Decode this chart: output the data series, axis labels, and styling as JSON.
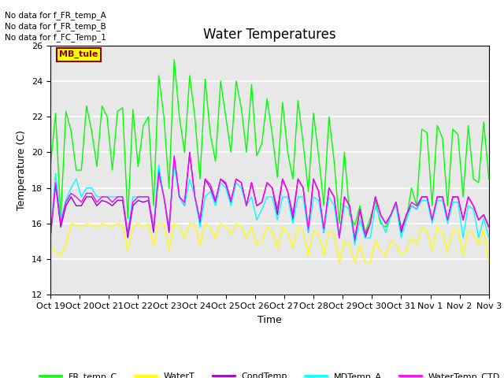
{
  "title": "Water Temperatures",
  "xlabel": "Time",
  "ylabel": "Temperature (C)",
  "ylim": [
    12,
    26
  ],
  "yticks": [
    12,
    14,
    16,
    18,
    20,
    22,
    24,
    26
  ],
  "background_color": "#ffffff",
  "plot_bg_color": "#e8e8e8",
  "no_data_texts": [
    "No data for f_FR_temp_A",
    "No data for f_FR_temp_B",
    "No data for f_FC_Temp_1"
  ],
  "mb_tule_label": "MB_tule",
  "legend_entries": [
    "FR_temp_C",
    "WaterT",
    "CondTemp",
    "MDTemp_A",
    "WaterTemp_CTD"
  ],
  "legend_colors": [
    "#00ff00",
    "#ffff00",
    "#9900cc",
    "#00ffff",
    "#ff00ff"
  ],
  "xtick_labels": [
    "Oct 19",
    "Oct 20",
    "Oct 21",
    "Oct 22",
    "Oct 23",
    "Oct 24",
    "Oct 25",
    "Oct 26",
    "Oct 27",
    "Oct 28",
    "Oct 29",
    "Oct 30",
    "Oct 31",
    "Nov 1",
    "Nov 2",
    "Nov 3"
  ],
  "FR_temp_C": [
    19.2,
    22.2,
    16.3,
    22.3,
    21.2,
    19.0,
    19.0,
    22.6,
    21.2,
    19.2,
    22.6,
    22.0,
    19.0,
    22.3,
    22.5,
    16.3,
    22.4,
    19.2,
    21.5,
    22.0,
    17.0,
    24.3,
    22.0,
    18.0,
    25.2,
    22.0,
    20.0,
    24.3,
    22.0,
    18.5,
    24.1,
    21.0,
    19.5,
    24.0,
    22.0,
    20.0,
    24.0,
    22.5,
    20.0,
    23.8,
    19.8,
    20.5,
    23.0,
    21.0,
    18.6,
    22.8,
    20.0,
    18.5,
    22.9,
    20.5,
    17.8,
    22.2,
    19.8,
    17.0,
    22.0,
    19.5,
    16.0,
    20.0,
    16.5,
    15.9,
    17.0,
    15.5,
    16.3,
    17.3,
    16.0,
    15.8,
    16.4,
    17.2,
    15.8,
    16.2,
    18.0,
    17.0,
    21.3,
    21.1,
    17.0,
    21.5,
    20.8,
    17.0,
    21.3,
    21.0,
    17.5,
    21.5,
    18.5,
    18.3,
    21.7,
    18.5
  ],
  "WaterT": [
    14.8,
    14.4,
    14.2,
    14.8,
    16.0,
    15.9,
    15.8,
    16.0,
    15.9,
    15.8,
    16.0,
    15.9,
    15.8,
    16.0,
    15.9,
    14.5,
    15.8,
    16.0,
    15.8,
    16.0,
    14.8,
    16.0,
    16.0,
    14.5,
    16.0,
    15.8,
    15.2,
    16.0,
    16.0,
    14.8,
    16.0,
    15.8,
    15.2,
    16.0,
    15.8,
    15.4,
    16.0,
    15.8,
    15.2,
    15.8,
    14.8,
    15.0,
    15.8,
    15.6,
    14.6,
    15.8,
    15.5,
    14.6,
    15.8,
    15.6,
    14.2,
    15.6,
    15.4,
    14.2,
    15.6,
    15.4,
    13.8,
    15.0,
    14.8,
    13.8,
    14.8,
    13.8,
    13.8,
    15.0,
    14.5,
    14.2,
    15.0,
    14.8,
    14.2,
    14.5,
    15.2,
    14.8,
    15.8,
    15.6,
    14.5,
    15.8,
    15.5,
    14.4,
    15.6,
    15.6,
    14.2,
    15.6,
    15.4,
    14.8,
    15.6,
    13.8
  ],
  "CondTemp": [
    15.2,
    18.2,
    15.8,
    17.0,
    17.5,
    17.0,
    17.0,
    17.5,
    17.5,
    17.0,
    17.3,
    17.2,
    17.0,
    17.3,
    17.3,
    15.2,
    17.0,
    17.3,
    17.2,
    17.3,
    15.5,
    19.0,
    17.5,
    15.5,
    19.7,
    17.5,
    17.0,
    20.0,
    17.5,
    16.0,
    18.5,
    18.0,
    17.2,
    18.5,
    18.2,
    17.2,
    18.5,
    18.3,
    17.0,
    18.3,
    17.0,
    17.2,
    18.3,
    18.0,
    16.5,
    18.5,
    17.8,
    16.2,
    18.5,
    18.0,
    15.5,
    18.5,
    17.8,
    15.5,
    18.0,
    17.5,
    15.2,
    17.5,
    17.0,
    15.0,
    16.8,
    15.2,
    16.0,
    17.5,
    16.5,
    16.0,
    16.5,
    17.2,
    15.5,
    16.5,
    17.0,
    16.8,
    17.5,
    17.5,
    16.2,
    17.5,
    17.5,
    16.2,
    17.5,
    17.5,
    16.2,
    17.5,
    17.0,
    16.2,
    16.5,
    15.8
  ],
  "MDTemp_A": [
    15.2,
    18.8,
    16.2,
    17.3,
    18.0,
    18.5,
    17.5,
    18.0,
    18.0,
    17.5,
    17.5,
    17.5,
    17.5,
    17.5,
    17.5,
    15.5,
    17.5,
    17.5,
    17.5,
    17.5,
    15.8,
    19.3,
    17.5,
    15.8,
    19.3,
    17.5,
    17.0,
    18.5,
    17.5,
    15.8,
    17.5,
    17.8,
    17.0,
    18.3,
    18.0,
    17.0,
    18.3,
    18.0,
    17.0,
    17.5,
    16.2,
    16.8,
    17.5,
    17.5,
    16.2,
    17.5,
    17.5,
    16.0,
    17.5,
    17.5,
    15.5,
    17.5,
    17.3,
    15.5,
    17.5,
    17.0,
    15.2,
    17.0,
    16.8,
    14.8,
    16.2,
    15.2,
    15.2,
    17.0,
    16.2,
    15.5,
    16.5,
    17.0,
    15.2,
    16.2,
    17.0,
    16.8,
    17.3,
    17.3,
    16.0,
    17.3,
    17.3,
    16.0,
    17.2,
    17.2,
    15.2,
    17.0,
    16.8,
    15.2,
    16.3,
    15.2
  ],
  "WaterTemp_CTD": [
    15.3,
    18.3,
    16.0,
    17.2,
    17.7,
    17.5,
    17.2,
    17.7,
    17.7,
    17.2,
    17.5,
    17.5,
    17.2,
    17.5,
    17.5,
    15.4,
    17.2,
    17.5,
    17.5,
    17.5,
    15.7,
    18.8,
    17.5,
    15.7,
    19.8,
    17.5,
    17.2,
    19.9,
    17.5,
    16.2,
    18.5,
    18.2,
    17.3,
    18.5,
    18.3,
    17.3,
    18.5,
    18.3,
    17.0,
    18.3,
    17.0,
    17.2,
    18.3,
    18.0,
    16.8,
    18.5,
    17.8,
    16.5,
    18.5,
    18.0,
    15.7,
    18.5,
    17.8,
    15.7,
    18.0,
    17.5,
    15.2,
    17.5,
    17.0,
    15.2,
    16.8,
    15.4,
    16.0,
    17.5,
    16.5,
    16.0,
    16.5,
    17.2,
    15.7,
    16.5,
    17.2,
    17.0,
    17.5,
    17.5,
    16.2,
    17.5,
    17.5,
    16.2,
    17.5,
    17.5,
    16.2,
    17.5,
    17.0,
    16.2,
    16.5,
    15.8
  ]
}
